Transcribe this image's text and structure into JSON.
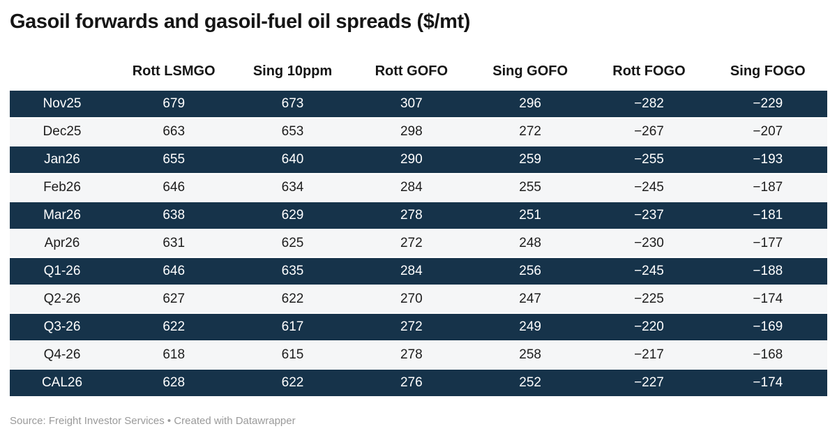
{
  "title": "Gasoil forwards and gasoil-fuel oil spreads ($/mt)",
  "footer": {
    "text": "Source: Freight Investor Services • Created with Datawrapper"
  },
  "colors": {
    "dark_row_bg": "#16334a",
    "light_row_bg": "#f5f6f7",
    "dark_row_text": "#ffffff",
    "light_row_text": "#1d1d1d",
    "title_color": "#151515",
    "header_color": "#151515",
    "footer_color": "#9a9a9a"
  },
  "chart_data": {
    "type": "table",
    "title": "Gasoil forwards and gasoil-fuel oil spreads ($/mt)",
    "unit": "$/mt",
    "columns": [
      "",
      "Rott LSMGO",
      "Sing 10ppm",
      "Rott GOFO",
      "Sing GOFO",
      "Rott FOGO",
      "Sing FOGO"
    ],
    "layout_hints": {
      "striping": "rows alternate dark navy and light gray, first row dark",
      "alignment": "all cells centered",
      "source_note_position": "bottom-left"
    },
    "rows": [
      {
        "label": "Nov25",
        "values": [
          "679",
          "673",
          "307",
          "296",
          "−282",
          "−229"
        ]
      },
      {
        "label": "Dec25",
        "values": [
          "663",
          "653",
          "298",
          "272",
          "−267",
          "−207"
        ]
      },
      {
        "label": "Jan26",
        "values": [
          "655",
          "640",
          "290",
          "259",
          "−255",
          "−193"
        ]
      },
      {
        "label": "Feb26",
        "values": [
          "646",
          "634",
          "284",
          "255",
          "−245",
          "−187"
        ]
      },
      {
        "label": "Mar26",
        "values": [
          "638",
          "629",
          "278",
          "251",
          "−237",
          "−181"
        ]
      },
      {
        "label": "Apr26",
        "values": [
          "631",
          "625",
          "272",
          "248",
          "−230",
          "−177"
        ]
      },
      {
        "label": "Q1-26",
        "values": [
          "646",
          "635",
          "284",
          "256",
          "−245",
          "−188"
        ]
      },
      {
        "label": "Q2-26",
        "values": [
          "627",
          "622",
          "270",
          "247",
          "−225",
          "−174"
        ]
      },
      {
        "label": "Q3-26",
        "values": [
          "622",
          "617",
          "272",
          "249",
          "−220",
          "−169"
        ]
      },
      {
        "label": "Q4-26",
        "values": [
          "618",
          "615",
          "278",
          "258",
          "−217",
          "−168"
        ]
      },
      {
        "label": "CAL26",
        "values": [
          "628",
          "622",
          "276",
          "252",
          "−227",
          "−174"
        ]
      }
    ]
  }
}
